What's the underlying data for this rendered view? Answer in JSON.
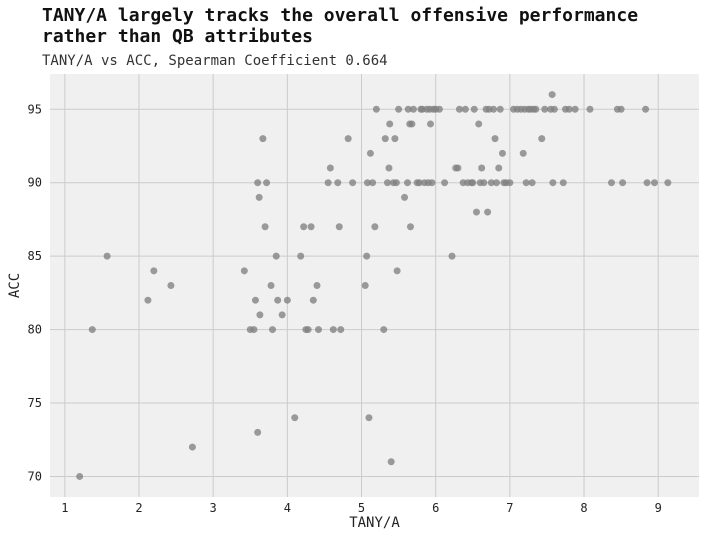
{
  "chart_data": {
    "type": "scatter",
    "title": "TANY/A largely tracks the overall offensive performance rather than QB attributes",
    "subtitle": "TANY/A vs ACC, Spearman Coefficient 0.664",
    "xlabel": "TANY/A",
    "ylabel": "ACC",
    "xlim": [
      0.8,
      9.55
    ],
    "ylim": [
      68.6,
      97.4
    ],
    "xticks": [
      1,
      2,
      3,
      4,
      5,
      6,
      7,
      8,
      9
    ],
    "yticks": [
      70,
      75,
      80,
      85,
      90,
      95
    ],
    "grid": true,
    "point_color": "#808080",
    "background": "#f0f0f0",
    "points": [
      {
        "x": 1.2,
        "y": 70
      },
      {
        "x": 1.37,
        "y": 80
      },
      {
        "x": 1.57,
        "y": 85
      },
      {
        "x": 2.12,
        "y": 82
      },
      {
        "x": 2.2,
        "y": 84
      },
      {
        "x": 2.43,
        "y": 83
      },
      {
        "x": 2.72,
        "y": 72
      },
      {
        "x": 3.42,
        "y": 84
      },
      {
        "x": 3.5,
        "y": 80
      },
      {
        "x": 3.55,
        "y": 80
      },
      {
        "x": 3.57,
        "y": 82
      },
      {
        "x": 3.6,
        "y": 90
      },
      {
        "x": 3.62,
        "y": 89
      },
      {
        "x": 3.63,
        "y": 81
      },
      {
        "x": 3.67,
        "y": 93
      },
      {
        "x": 3.7,
        "y": 87
      },
      {
        "x": 3.72,
        "y": 90
      },
      {
        "x": 3.6,
        "y": 73
      },
      {
        "x": 3.78,
        "y": 83
      },
      {
        "x": 3.8,
        "y": 80
      },
      {
        "x": 3.85,
        "y": 85
      },
      {
        "x": 3.87,
        "y": 82
      },
      {
        "x": 3.93,
        "y": 81
      },
      {
        "x": 4.0,
        "y": 82
      },
      {
        "x": 4.1,
        "y": 74
      },
      {
        "x": 4.18,
        "y": 85
      },
      {
        "x": 4.22,
        "y": 87
      },
      {
        "x": 4.25,
        "y": 80
      },
      {
        "x": 4.28,
        "y": 80
      },
      {
        "x": 4.32,
        "y": 87
      },
      {
        "x": 4.35,
        "y": 82
      },
      {
        "x": 4.4,
        "y": 83
      },
      {
        "x": 4.42,
        "y": 80
      },
      {
        "x": 4.55,
        "y": 90
      },
      {
        "x": 4.58,
        "y": 91
      },
      {
        "x": 4.62,
        "y": 80
      },
      {
        "x": 4.68,
        "y": 90
      },
      {
        "x": 4.7,
        "y": 87
      },
      {
        "x": 4.72,
        "y": 80
      },
      {
        "x": 4.82,
        "y": 93
      },
      {
        "x": 4.88,
        "y": 90
      },
      {
        "x": 5.05,
        "y": 83
      },
      {
        "x": 5.07,
        "y": 85
      },
      {
        "x": 5.08,
        "y": 90
      },
      {
        "x": 5.1,
        "y": 74
      },
      {
        "x": 5.12,
        "y": 92
      },
      {
        "x": 5.15,
        "y": 90
      },
      {
        "x": 5.18,
        "y": 87
      },
      {
        "x": 5.2,
        "y": 95
      },
      {
        "x": 5.3,
        "y": 80
      },
      {
        "x": 5.32,
        "y": 93
      },
      {
        "x": 5.35,
        "y": 90
      },
      {
        "x": 5.37,
        "y": 91
      },
      {
        "x": 5.38,
        "y": 94
      },
      {
        "x": 5.4,
        "y": 71
      },
      {
        "x": 5.43,
        "y": 90
      },
      {
        "x": 5.45,
        "y": 93
      },
      {
        "x": 5.47,
        "y": 90
      },
      {
        "x": 5.48,
        "y": 84
      },
      {
        "x": 5.5,
        "y": 95
      },
      {
        "x": 5.58,
        "y": 89
      },
      {
        "x": 5.62,
        "y": 90
      },
      {
        "x": 5.63,
        "y": 95
      },
      {
        "x": 5.65,
        "y": 94
      },
      {
        "x": 5.66,
        "y": 87
      },
      {
        "x": 5.68,
        "y": 94
      },
      {
        "x": 5.7,
        "y": 95
      },
      {
        "x": 5.75,
        "y": 90
      },
      {
        "x": 5.78,
        "y": 90
      },
      {
        "x": 5.8,
        "y": 95
      },
      {
        "x": 5.82,
        "y": 95
      },
      {
        "x": 5.85,
        "y": 90
      },
      {
        "x": 5.88,
        "y": 95
      },
      {
        "x": 5.9,
        "y": 90
      },
      {
        "x": 5.92,
        "y": 95
      },
      {
        "x": 5.93,
        "y": 94
      },
      {
        "x": 5.95,
        "y": 90
      },
      {
        "x": 5.97,
        "y": 95
      },
      {
        "x": 6.0,
        "y": 95
      },
      {
        "x": 6.05,
        "y": 95
      },
      {
        "x": 6.12,
        "y": 90
      },
      {
        "x": 6.22,
        "y": 85
      },
      {
        "x": 6.27,
        "y": 91
      },
      {
        "x": 6.3,
        "y": 91
      },
      {
        "x": 6.32,
        "y": 95
      },
      {
        "x": 6.37,
        "y": 90
      },
      {
        "x": 6.4,
        "y": 95
      },
      {
        "x": 6.43,
        "y": 90
      },
      {
        "x": 6.48,
        "y": 90
      },
      {
        "x": 6.5,
        "y": 90
      },
      {
        "x": 6.52,
        "y": 95
      },
      {
        "x": 6.55,
        "y": 88
      },
      {
        "x": 6.58,
        "y": 94
      },
      {
        "x": 6.6,
        "y": 90
      },
      {
        "x": 6.62,
        "y": 91
      },
      {
        "x": 6.65,
        "y": 90
      },
      {
        "x": 6.68,
        "y": 95
      },
      {
        "x": 6.7,
        "y": 88
      },
      {
        "x": 6.72,
        "y": 95
      },
      {
        "x": 6.75,
        "y": 90
      },
      {
        "x": 6.78,
        "y": 95
      },
      {
        "x": 6.8,
        "y": 93
      },
      {
        "x": 6.82,
        "y": 90
      },
      {
        "x": 6.85,
        "y": 91
      },
      {
        "x": 6.87,
        "y": 95
      },
      {
        "x": 6.9,
        "y": 92
      },
      {
        "x": 6.92,
        "y": 90
      },
      {
        "x": 6.95,
        "y": 90
      },
      {
        "x": 7.0,
        "y": 90
      },
      {
        "x": 7.05,
        "y": 95
      },
      {
        "x": 7.1,
        "y": 95
      },
      {
        "x": 7.15,
        "y": 95
      },
      {
        "x": 7.18,
        "y": 92
      },
      {
        "x": 7.2,
        "y": 95
      },
      {
        "x": 7.22,
        "y": 90
      },
      {
        "x": 7.25,
        "y": 95
      },
      {
        "x": 7.28,
        "y": 95
      },
      {
        "x": 7.3,
        "y": 90
      },
      {
        "x": 7.32,
        "y": 95
      },
      {
        "x": 7.35,
        "y": 95
      },
      {
        "x": 7.43,
        "y": 93
      },
      {
        "x": 7.47,
        "y": 95
      },
      {
        "x": 7.55,
        "y": 95
      },
      {
        "x": 7.57,
        "y": 96
      },
      {
        "x": 7.58,
        "y": 90
      },
      {
        "x": 7.6,
        "y": 95
      },
      {
        "x": 7.72,
        "y": 90
      },
      {
        "x": 7.75,
        "y": 95
      },
      {
        "x": 7.8,
        "y": 95
      },
      {
        "x": 7.88,
        "y": 95
      },
      {
        "x": 8.08,
        "y": 95
      },
      {
        "x": 8.37,
        "y": 90
      },
      {
        "x": 8.45,
        "y": 95
      },
      {
        "x": 8.5,
        "y": 95
      },
      {
        "x": 8.52,
        "y": 90
      },
      {
        "x": 8.83,
        "y": 95
      },
      {
        "x": 8.85,
        "y": 90
      },
      {
        "x": 8.95,
        "y": 90
      },
      {
        "x": 9.13,
        "y": 90
      }
    ]
  }
}
